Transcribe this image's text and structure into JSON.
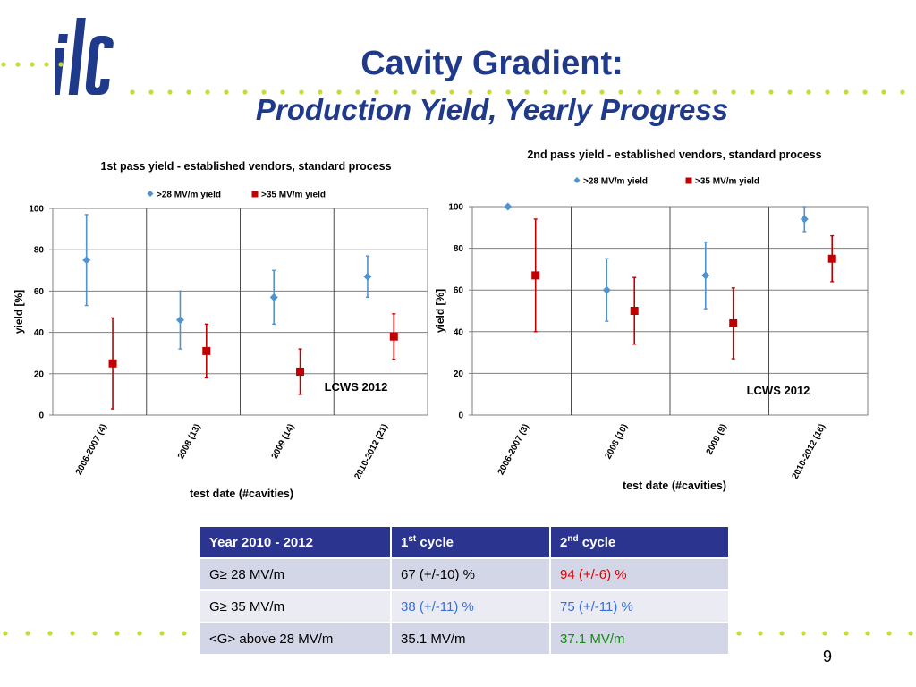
{
  "slide": {
    "title_line1": "Cavity Gradient:",
    "title_line2": "Production Yield, Yearly Progress",
    "page_number": "9",
    "logo_text": "ilc"
  },
  "colors": {
    "title": "#1f3a8a",
    "series_28": "#4f93cf",
    "series_35": "#c00000",
    "table_header": "#2b3590",
    "red_text": "#e00000",
    "blue_text": "#3a6fd8",
    "green_text": "#118c11",
    "dots": "#c9d93a"
  },
  "chart_data": [
    {
      "type": "scatter",
      "title": "1st pass yield - established vendors, standard process",
      "xlabel": "test date (#cavities)",
      "ylabel": "yield [%]",
      "ylim": [
        0,
        100
      ],
      "yticks": [
        "0",
        "20",
        "40",
        "60",
        "80",
        "100"
      ],
      "categories": [
        "2006-2007 (4)",
        "2008 (13)",
        "2009 (14)",
        "2010-2012 (21)"
      ],
      "grid": true,
      "legend_position": "top",
      "annotation": "LCWS 2012",
      "series": [
        {
          "name": ">28 MV/m yield",
          "marker": "diamond",
          "values": [
            75,
            46,
            57,
            67
          ],
          "err_low": [
            53,
            32,
            44,
            57
          ],
          "err_high": [
            97,
            60,
            70,
            77
          ]
        },
        {
          "name": ">35 MV/m yield",
          "marker": "square",
          "values": [
            25,
            31,
            21,
            38
          ],
          "err_low": [
            3,
            18,
            10,
            27
          ],
          "err_high": [
            47,
            44,
            32,
            49
          ]
        }
      ]
    },
    {
      "type": "scatter",
      "title": "2nd pass yield - established vendors, standard process",
      "xlabel": "test date (#cavities)",
      "ylabel": "yield [%]",
      "ylim": [
        0,
        100
      ],
      "yticks": [
        "0",
        "20",
        "40",
        "60",
        "80",
        "100"
      ],
      "categories": [
        "2006-2007 (3)",
        "2008 (10)",
        "2009 (9)",
        "2010-2012 (16)"
      ],
      "grid": true,
      "legend_position": "top",
      "annotation": "LCWS 2012",
      "series": [
        {
          "name": ">28 MV/m yield",
          "marker": "diamond",
          "values": [
            100,
            60,
            67,
            94
          ],
          "err_low": [
            100,
            45,
            51,
            88
          ],
          "err_high": [
            100,
            75,
            83,
            100
          ]
        },
        {
          "name": ">35 MV/m yield",
          "marker": "square",
          "values": [
            67,
            50,
            44,
            75
          ],
          "err_low": [
            40,
            34,
            27,
            64
          ],
          "err_high": [
            94,
            66,
            61,
            86
          ]
        }
      ]
    }
  ],
  "table": {
    "headers": [
      {
        "text": "Year 2010 - 2012",
        "sup": ""
      },
      {
        "text": "1",
        "sup": "st",
        "suffix": " cycle"
      },
      {
        "text": "2",
        "sup": "nd",
        "suffix": " cycle"
      }
    ],
    "rows": [
      {
        "label": "G≥ 28 MV/m",
        "c1": "67 (+/-10) %",
        "c2": "94 (+/-6) %"
      },
      {
        "label": "G≥ 35 MV/m",
        "c1": "38 (+/-11) %",
        "c2": "75 (+/-11) %"
      },
      {
        "label": "<G>  above 28 MV/m",
        "c1": "35.1 MV/m",
        "c2": "37.1 MV/m"
      }
    ]
  }
}
